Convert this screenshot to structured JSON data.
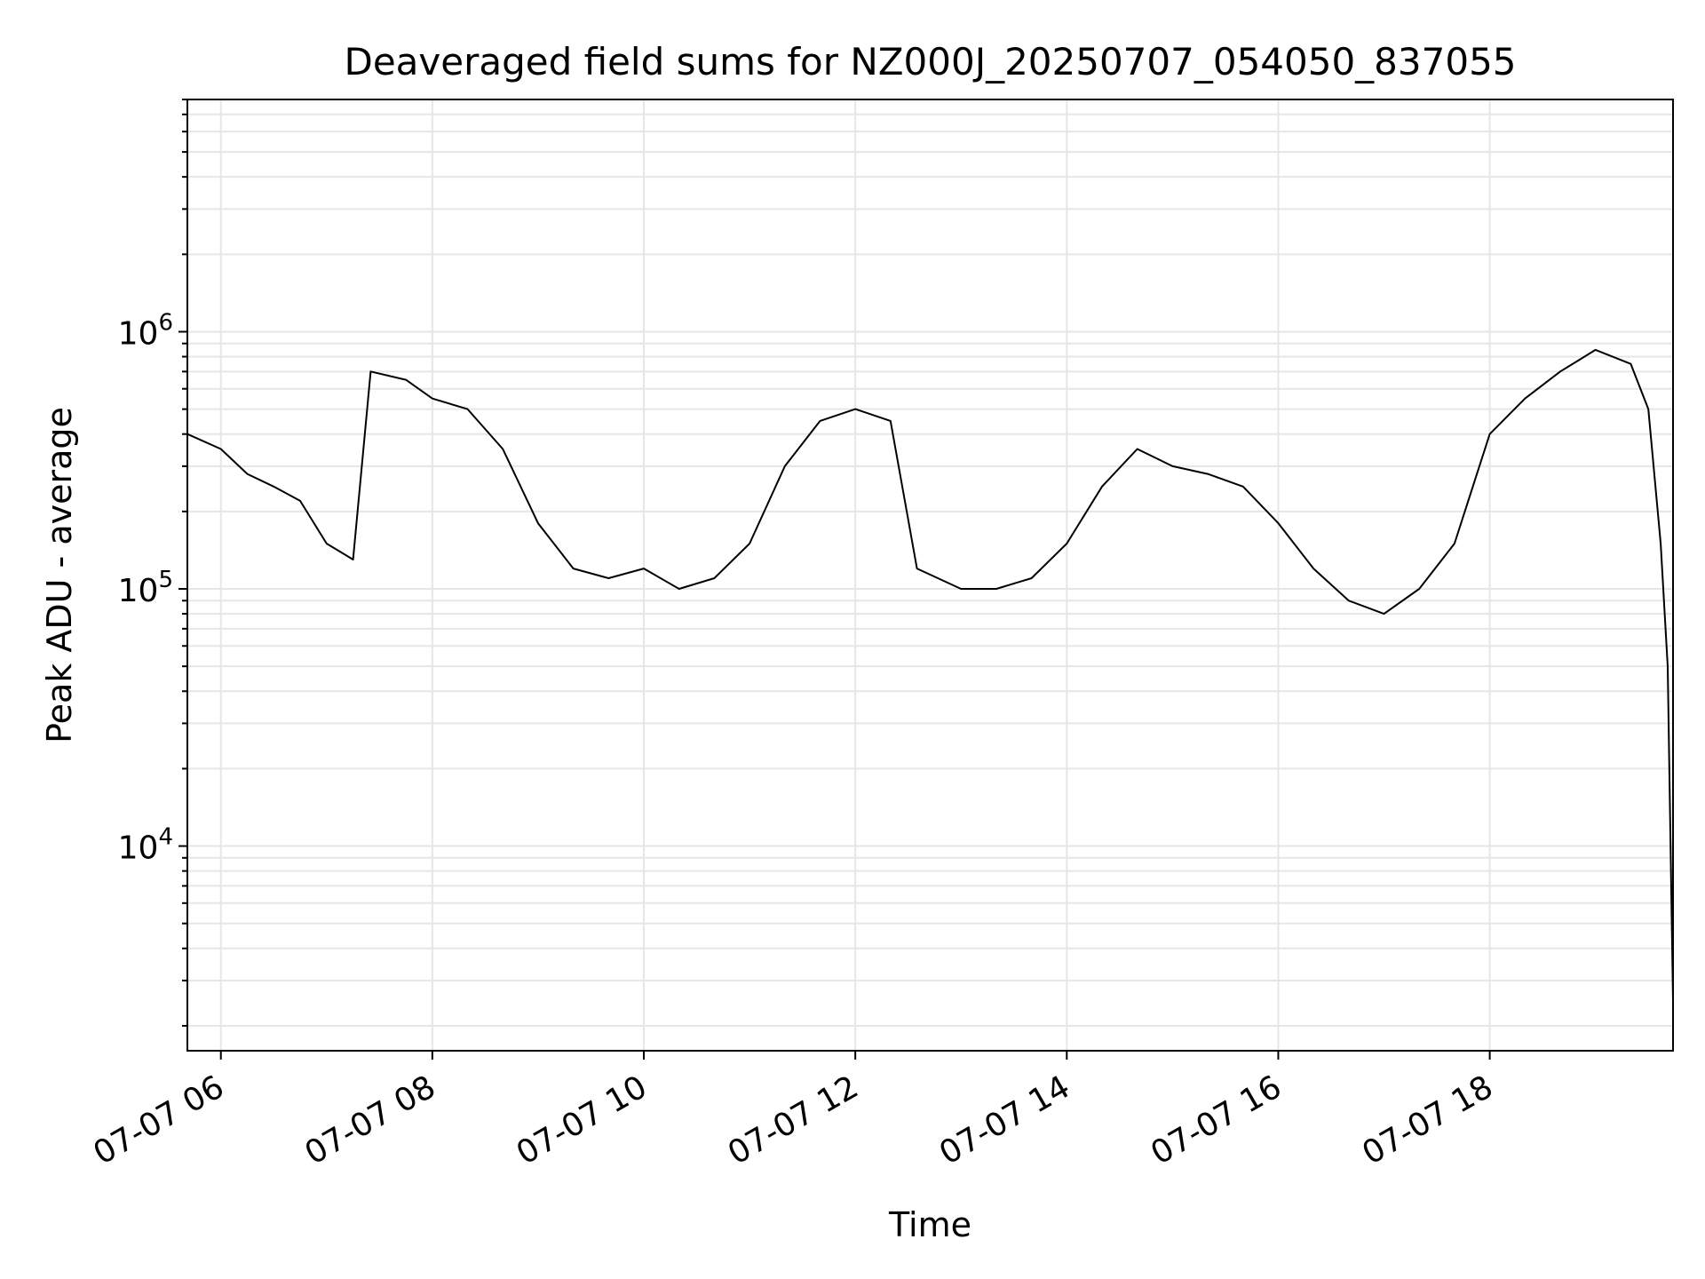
{
  "chart_data": {
    "type": "line",
    "title": "Deaveraged field sums for NZ000J_20250707_054050_837055",
    "xlabel": "Time",
    "ylabel": "Peak ADU - average",
    "yscale": "log",
    "ylim": [
      1600,
      8000000
    ],
    "xlim": [
      "2025-07-07 05:41",
      "2025-07-07 19:44"
    ],
    "grid": true,
    "line_color": "#000000",
    "x_tick_labels": [
      "07-07 06",
      "07-07 08",
      "07-07 10",
      "07-07 12",
      "07-07 14",
      "07-07 16",
      "07-07 18"
    ],
    "x_ticks": [
      "2025-07-07 06:00",
      "2025-07-07 08:00",
      "2025-07-07 10:00",
      "2025-07-07 12:00",
      "2025-07-07 14:00",
      "2025-07-07 16:00",
      "2025-07-07 18:00"
    ],
    "y_ticks": [
      {
        "value": 10000,
        "base": "10",
        "exp": "4"
      },
      {
        "value": 100000,
        "base": "10",
        "exp": "5"
      },
      {
        "value": 1000000,
        "base": "10",
        "exp": "6"
      }
    ],
    "series": [
      {
        "name": "",
        "x": [
          "2025-07-07 05:41",
          "2025-07-07 06:00",
          "2025-07-07 06:15",
          "2025-07-07 06:30",
          "2025-07-07 06:45",
          "2025-07-07 07:00",
          "2025-07-07 07:15",
          "2025-07-07 07:25",
          "2025-07-07 07:45",
          "2025-07-07 08:00",
          "2025-07-07 08:20",
          "2025-07-07 08:40",
          "2025-07-07 09:00",
          "2025-07-07 09:20",
          "2025-07-07 09:40",
          "2025-07-07 10:00",
          "2025-07-07 10:20",
          "2025-07-07 10:40",
          "2025-07-07 11:00",
          "2025-07-07 11:20",
          "2025-07-07 11:40",
          "2025-07-07 12:00",
          "2025-07-07 12:20",
          "2025-07-07 12:35",
          "2025-07-07 13:00",
          "2025-07-07 13:20",
          "2025-07-07 13:40",
          "2025-07-07 14:00",
          "2025-07-07 14:20",
          "2025-07-07 14:40",
          "2025-07-07 15:00",
          "2025-07-07 15:20",
          "2025-07-07 15:40",
          "2025-07-07 16:00",
          "2025-07-07 16:20",
          "2025-07-07 16:40",
          "2025-07-07 17:00",
          "2025-07-07 17:20",
          "2025-07-07 17:40",
          "2025-07-07 18:00",
          "2025-07-07 18:20",
          "2025-07-07 18:40",
          "2025-07-07 19:00",
          "2025-07-07 19:20",
          "2025-07-07 19:30",
          "2025-07-07 19:37",
          "2025-07-07 19:41",
          "2025-07-07 19:44"
        ],
        "y": [
          400000,
          350000,
          280000,
          250000,
          220000,
          150000,
          130000,
          700000,
          650000,
          550000,
          500000,
          350000,
          180000,
          120000,
          110000,
          120000,
          100000,
          110000,
          150000,
          300000,
          450000,
          500000,
          450000,
          120000,
          100000,
          100000,
          110000,
          150000,
          250000,
          350000,
          300000,
          280000,
          250000,
          180000,
          120000,
          90000,
          80000,
          100000,
          150000,
          400000,
          550000,
          700000,
          850000,
          750000,
          500000,
          150000,
          50000,
          2500
        ]
      }
    ]
  }
}
